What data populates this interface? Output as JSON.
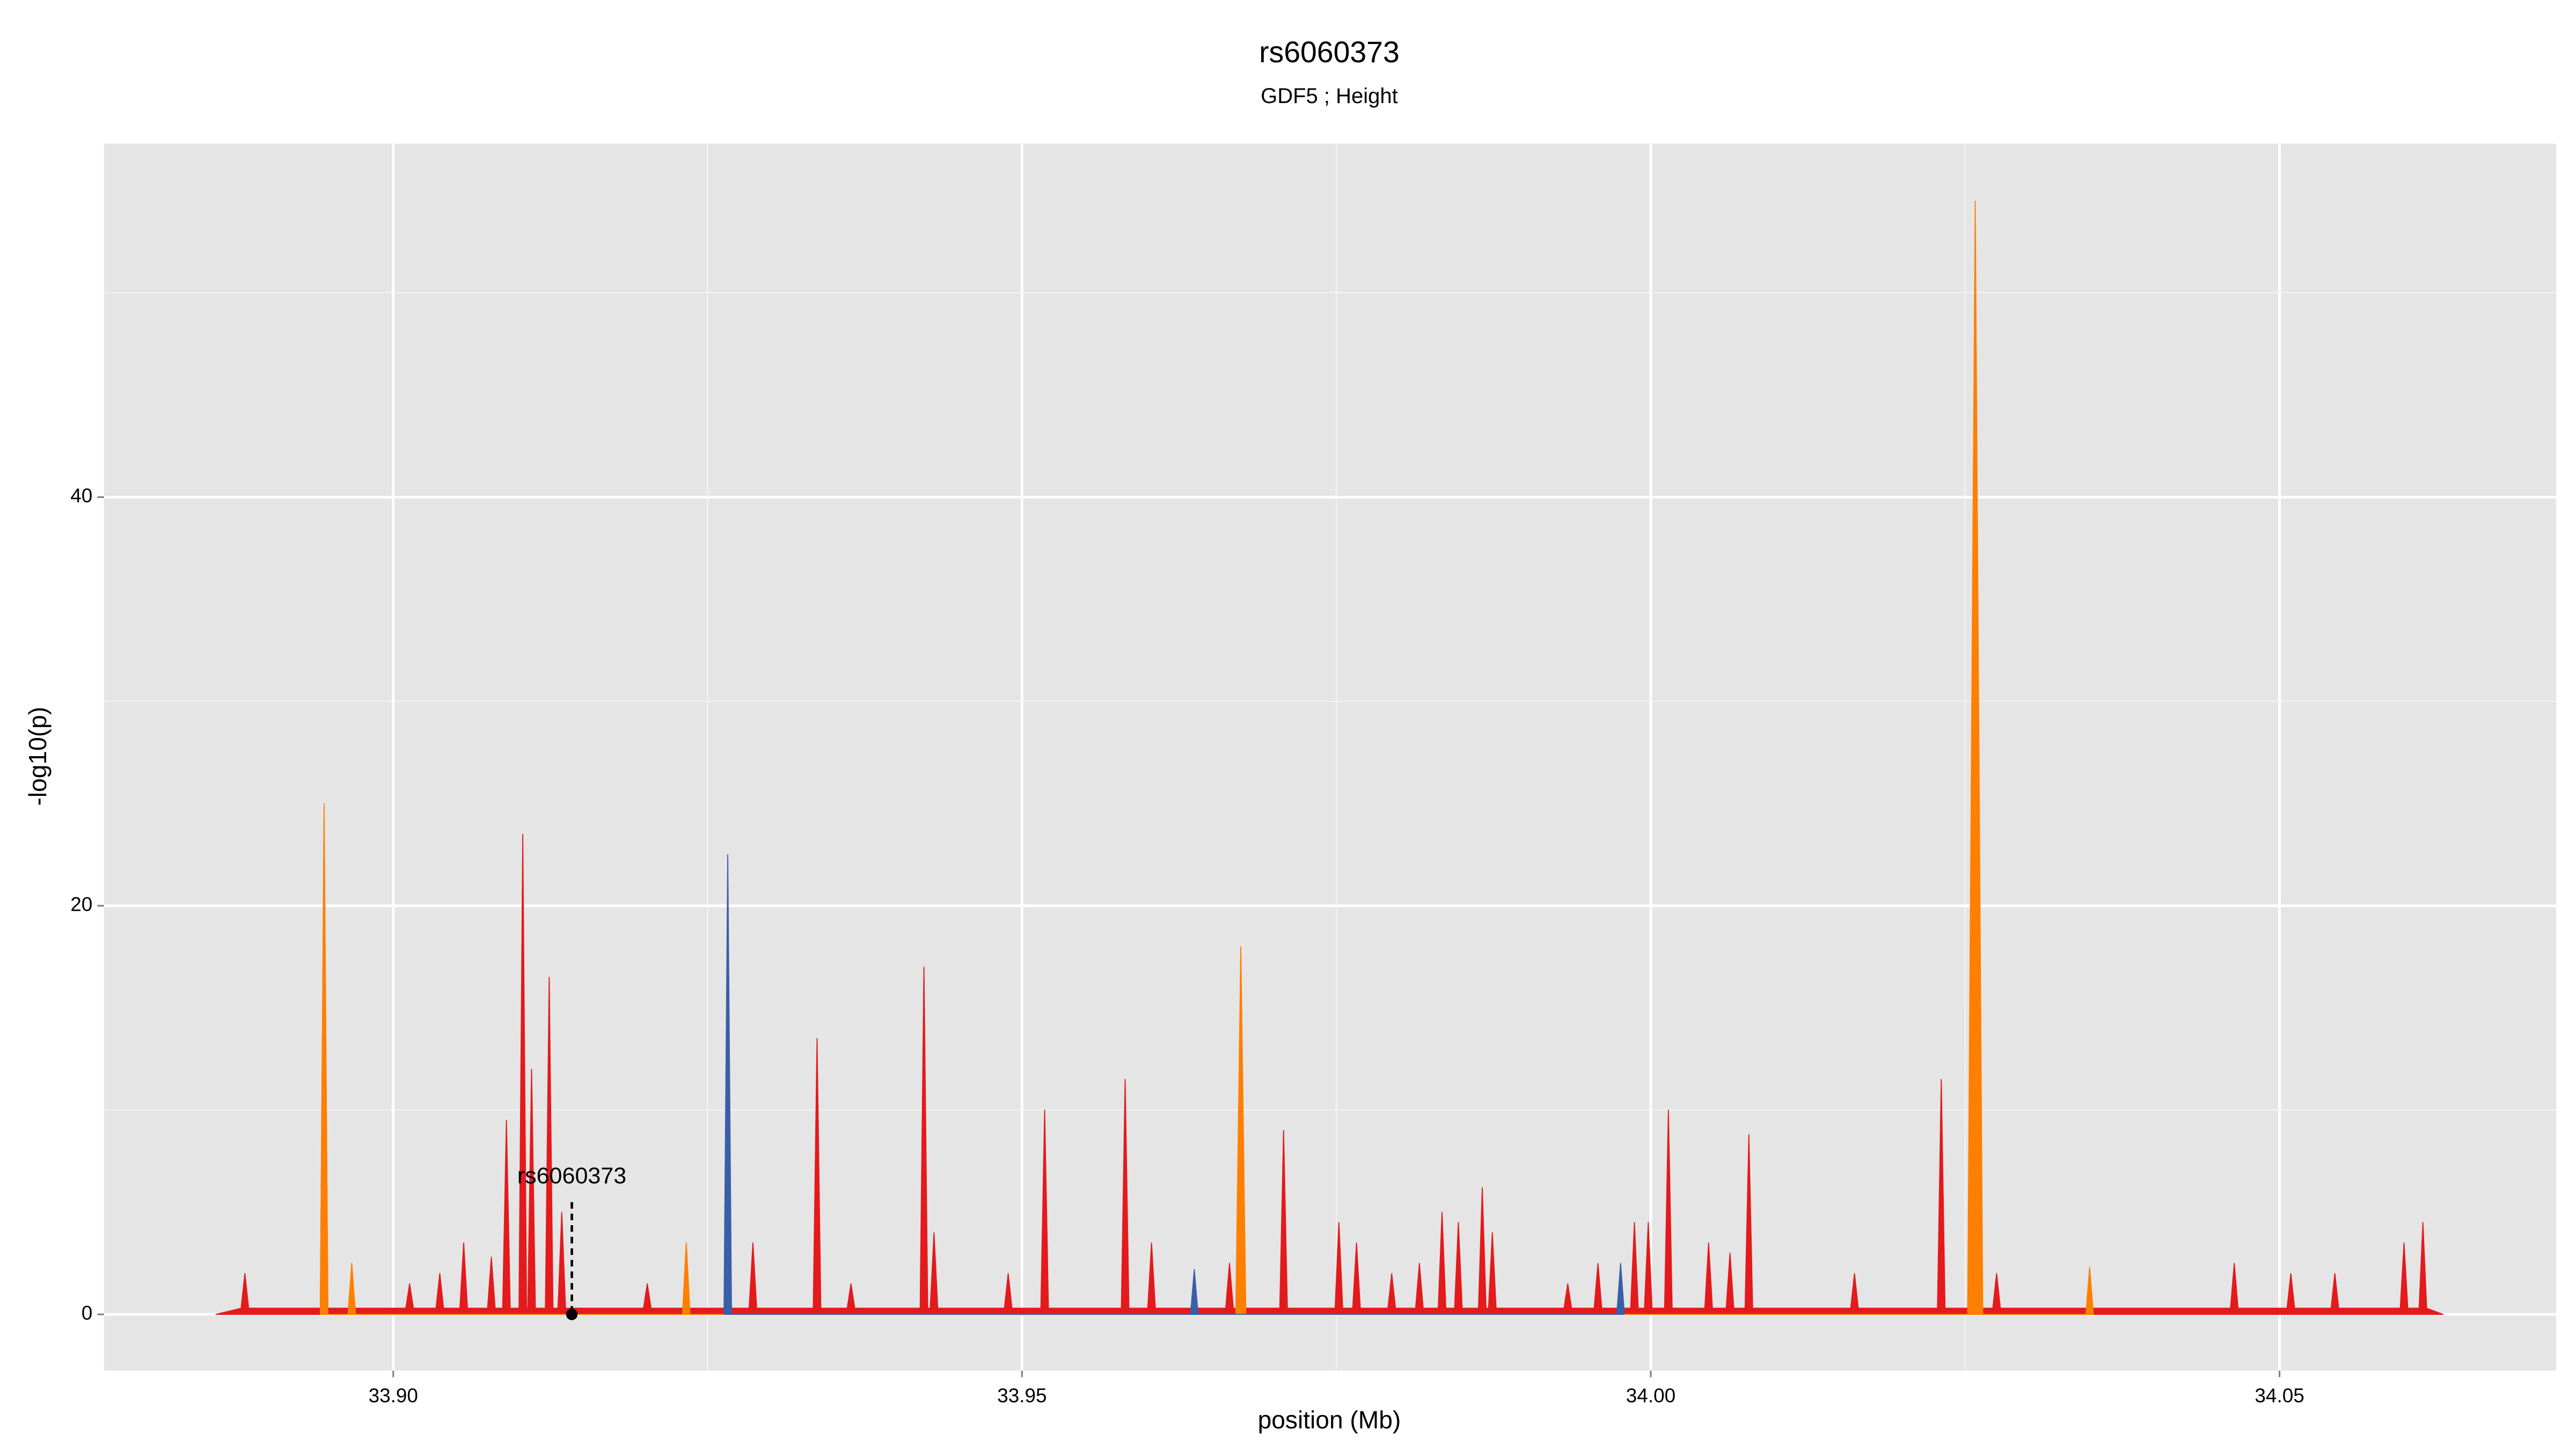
{
  "chart_data": {
    "type": "area",
    "title": "rs6060373",
    "subtitle": "GDF5 ; Height",
    "x_label": "position (Mb)",
    "y_label": "-log10(p)",
    "xlim": [
      33.877,
      34.072
    ],
    "ylim": [
      -2.75,
      57.3
    ],
    "xticks": [
      {
        "value": 33.9,
        "label": "33.90"
      },
      33.95,
      {
        "value": 34,
        "label": "34.00"
      },
      34.05
    ],
    "minor_xticks": [
      33.925,
      33.975,
      34.025
    ],
    "yticks": [
      0,
      20,
      40
    ],
    "minor_yticks": [
      10,
      30,
      50
    ],
    "grid": true,
    "background": "#e5e5e5",
    "annotation": {
      "text": "rs6060373",
      "x": 33.9142,
      "y": 0
    },
    "series": [
      {
        "color": "#e41a1c",
        "x": [
          33.8859,
          33.8879,
          33.8882,
          33.8885,
          33.8942,
          33.8945,
          33.8948,
          33.901,
          33.9013,
          33.9016,
          33.9034,
          33.9037,
          33.904,
          33.9053,
          33.9056,
          33.9059,
          33.9075,
          33.9078,
          33.9081,
          33.9087,
          33.909,
          33.9093,
          33.91,
          33.9103,
          33.9106,
          33.9107,
          33.911,
          33.9113,
          33.9121,
          33.9124,
          33.9127,
          33.9131,
          33.9134,
          33.9137,
          33.9199,
          33.9202,
          33.9205,
          33.9283,
          33.9286,
          33.9289,
          33.9334,
          33.9337,
          33.934,
          33.9361,
          33.9364,
          33.9367,
          33.9419,
          33.9422,
          33.9425,
          33.9427,
          33.943,
          33.9433,
          33.9486,
          33.9489,
          33.9492,
          33.9515,
          33.9518,
          33.9521,
          33.9579,
          33.9582,
          33.9585,
          33.96,
          33.9603,
          33.9606,
          33.9662,
          33.9665,
          33.9668,
          33.9705,
          33.9708,
          33.9711,
          33.9749,
          33.9752,
          33.9755,
          33.9763,
          33.9766,
          33.9769,
          33.9791,
          33.9794,
          33.9797,
          33.9813,
          33.9816,
          33.9819,
          33.9831,
          33.9834,
          33.9837,
          33.9844,
          33.9847,
          33.985,
          33.9863,
          33.9866,
          33.9869,
          33.9871,
          33.9874,
          33.9877,
          33.9931,
          33.9934,
          33.9937,
          33.9955,
          33.9958,
          33.9961,
          33.9984,
          33.9987,
          33.999,
          33.9995,
          33.9998,
          34.0001,
          34.0011,
          34.0014,
          34.0017,
          34.0043,
          34.0046,
          34.0049,
          34.006,
          34.0063,
          34.0066,
          34.0075,
          34.0078,
          34.0081,
          34.0159,
          34.0162,
          34.0165,
          34.0228,
          34.0231,
          34.0234,
          34.0272,
          34.0275,
          34.0278,
          34.0461,
          34.0464,
          34.0467,
          34.0506,
          34.0509,
          34.0512,
          34.0541,
          34.0544,
          34.0547,
          34.0596,
          34.0599,
          34.0602,
          34.0611,
          34.0614,
          34.0617,
          34.063
        ],
        "values": [
          0,
          0.3,
          2,
          0.3,
          0.3,
          24,
          0.3,
          0.3,
          1.5,
          0.3,
          0.3,
          2,
          0.3,
          0.3,
          3.5,
          0.3,
          0.3,
          2.8,
          0.3,
          0.3,
          9.5,
          0.3,
          0.3,
          23.5,
          0.3,
          0.3,
          12,
          0.3,
          0.3,
          16.5,
          0.3,
          0.3,
          5,
          0.3,
          0.3,
          1.5,
          0.3,
          0.3,
          3.5,
          0.3,
          0.3,
          13.5,
          0.3,
          0.3,
          1.5,
          0.3,
          0.3,
          17,
          0.3,
          0.3,
          4,
          0.3,
          0.3,
          2,
          0.3,
          0.3,
          10,
          0.3,
          0.3,
          11.5,
          0.3,
          0.3,
          3.5,
          0.3,
          0.3,
          2.5,
          0.3,
          0.3,
          9,
          0.3,
          0.3,
          4.5,
          0.3,
          0.3,
          3.5,
          0.3,
          0.3,
          2,
          0.3,
          0.3,
          2.5,
          0.3,
          0.3,
          5,
          0.3,
          0.3,
          4.5,
          0.3,
          0.3,
          6.2,
          0.3,
          0.3,
          4,
          0.3,
          0.3,
          1.5,
          0.3,
          0.3,
          2.5,
          0.3,
          0.3,
          4.5,
          0.3,
          0.3,
          4.5,
          0.3,
          0.3,
          10,
          0.3,
          0.3,
          3.5,
          0.3,
          0.3,
          3,
          0.3,
          0.3,
          8.8,
          0.3,
          0.3,
          2,
          0.3,
          0.3,
          11.5,
          0.3,
          0.3,
          2,
          0.3,
          0.3,
          2.5,
          0.3,
          0.3,
          2,
          0.3,
          0.3,
          2,
          0.3,
          0.3,
          3.5,
          0.3,
          0.3,
          4.5,
          0.3,
          0
        ]
      },
      {
        "color": "#ff7f00",
        "x": [
          33.8942,
          33.8945,
          33.8948,
          33.8964,
          33.8967,
          33.897,
          33.923,
          33.9233,
          33.9236,
          33.967,
          33.9674,
          33.9678,
          34.0252,
          34.0258,
          34.0264,
          34.0346,
          34.0349,
          34.0352
        ],
        "values": [
          0,
          25,
          0,
          0,
          2.5,
          0,
          0,
          3.5,
          0,
          0,
          18,
          0,
          0,
          54.5,
          0,
          0,
          2.3,
          0
        ]
      },
      {
        "color": "#3a5fa8",
        "x": [
          33.9263,
          33.9266,
          33.9269,
          33.9634,
          33.9637,
          33.964,
          33.9973,
          33.9976,
          33.9979
        ],
        "values": [
          0,
          22.5,
          0,
          0,
          2.2,
          0,
          0,
          2.5,
          0
        ]
      }
    ]
  }
}
